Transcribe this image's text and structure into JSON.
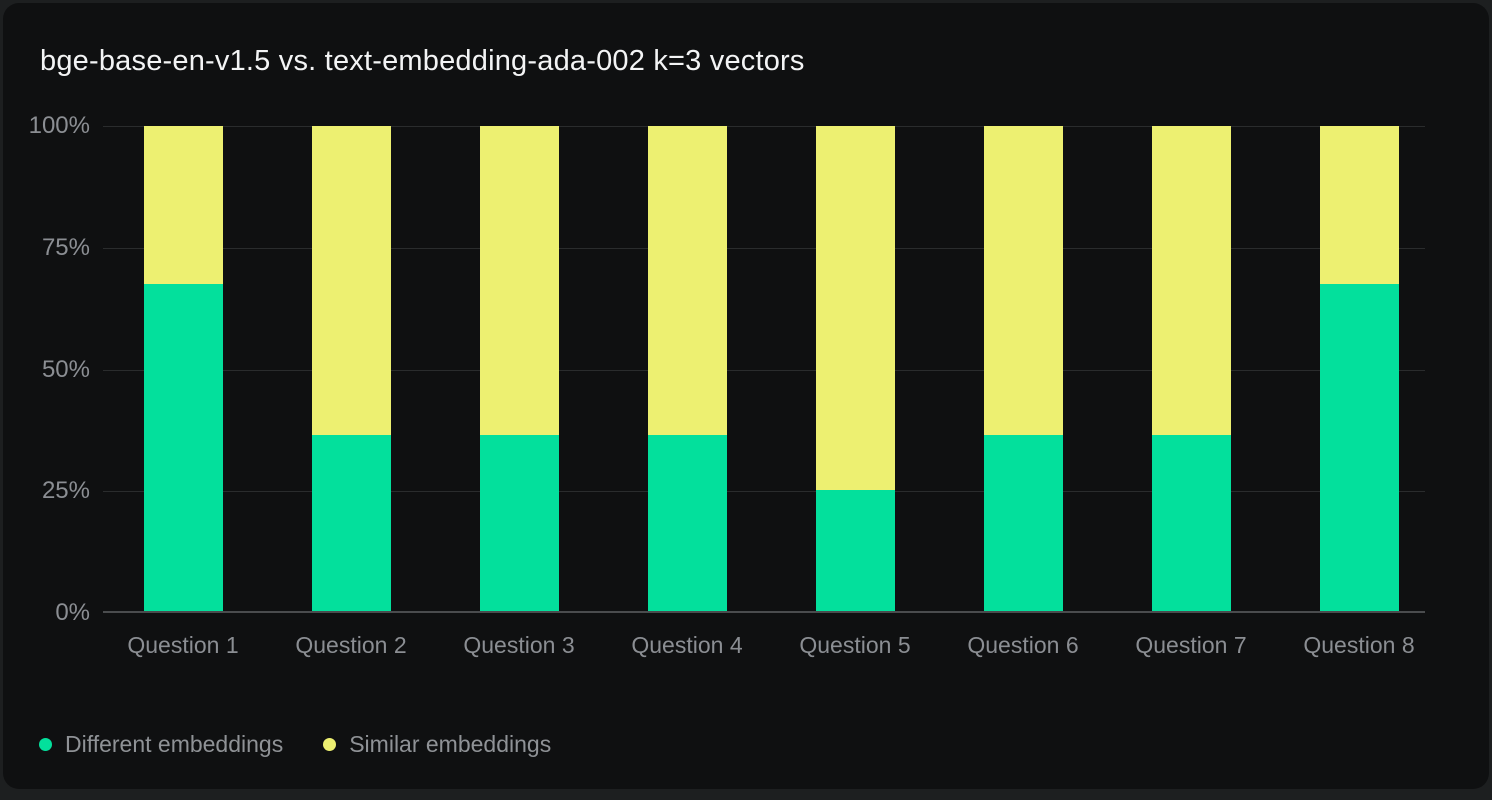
{
  "title": "bge-base-en-v1.5 vs. text-embedding-ada-002 k=3 vectors",
  "colors": {
    "page_background": "#1D1F20",
    "card_background": "#0F1011",
    "gridline": "#2A2C2D",
    "axis_line": "#4A4C4E",
    "tick_label": "#8B8E93",
    "title_text": "#F3F4F5",
    "legend_text": "#8F9296",
    "different_embeddings": "#03E09C",
    "similar_embeddings": "#EDF071"
  },
  "chart_data": {
    "type": "bar",
    "stacked": true,
    "title": "bge-base-en-v1.5 vs. text-embedding-ada-002 k=3 vectors",
    "categories": [
      "Question 1",
      "Question 2",
      "Question 3",
      "Question 4",
      "Question 5",
      "Question 6",
      "Question 7",
      "Question 8"
    ],
    "series": [
      {
        "name": "Different embeddings",
        "color": "#03E09C",
        "values": [
          67.5,
          36.3,
          36.3,
          36.3,
          25,
          36.3,
          36.3,
          67.5
        ]
      },
      {
        "name": "Similar embeddings",
        "color": "#EDF071",
        "values": [
          32.5,
          63.7,
          63.7,
          63.7,
          75,
          63.7,
          63.7,
          32.5
        ]
      }
    ],
    "xlabel": "",
    "ylabel": "",
    "ylim": [
      0,
      100
    ],
    "y_ticks": [
      0,
      25,
      50,
      75,
      100
    ],
    "y_tick_labels": [
      "0%",
      "25%",
      "50%",
      "75%",
      "100%"
    ],
    "grid": true,
    "legend_position": "bottom-left"
  }
}
